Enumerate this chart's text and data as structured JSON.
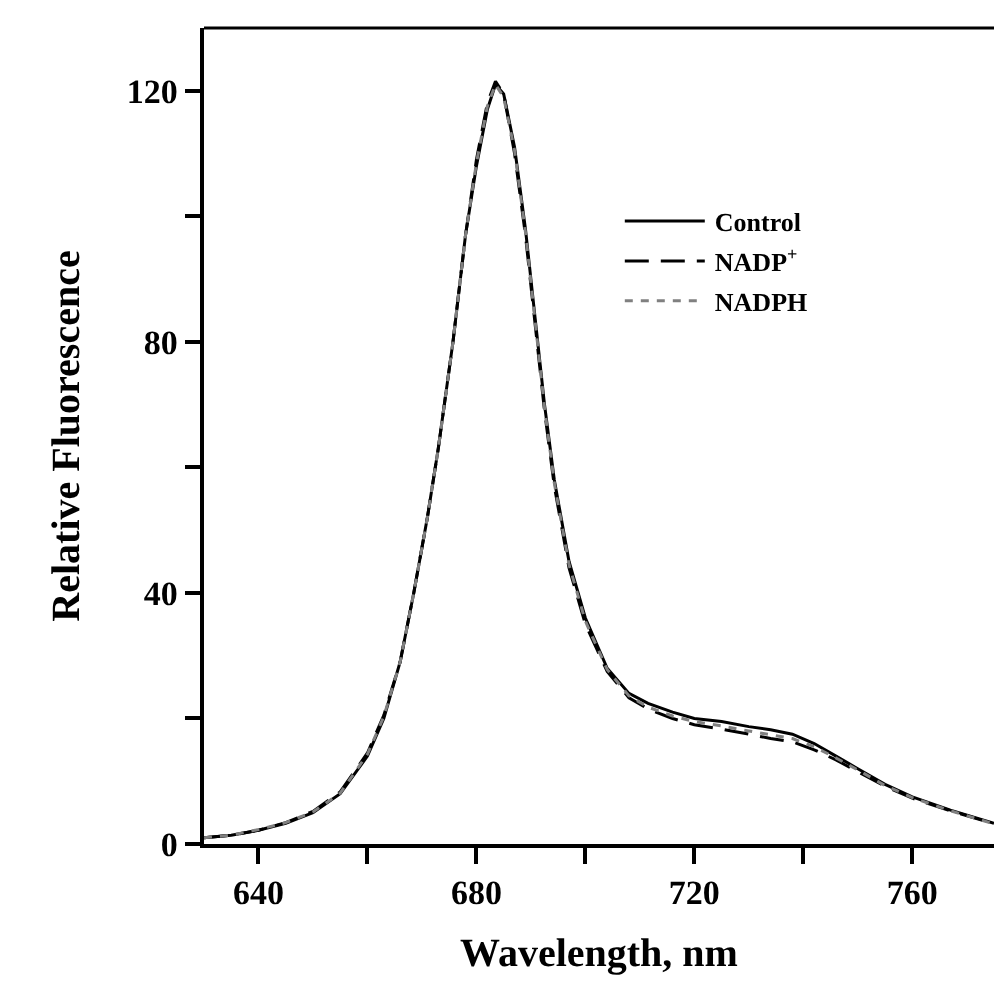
{
  "chart_data": {
    "type": "line",
    "xlabel": "Wavelength, nm",
    "ylabel": "Relative Fluorescence",
    "xlim": [
      630,
      775
    ],
    "ylim": [
      0,
      130
    ],
    "xticks": [
      640,
      {
        "value": 660,
        "label": null
      },
      680,
      {
        "value": 700,
        "label": null
      },
      720,
      {
        "value": 740,
        "label": null
      },
      760
    ],
    "yticks": [
      0,
      {
        "value": 20,
        "label": null
      },
      40,
      {
        "value": 60,
        "label": null
      },
      80,
      {
        "value": 100,
        "label": null
      },
      120
    ],
    "grid": false,
    "legend": "top right",
    "marker": "none",
    "x": [
      630,
      635,
      640,
      645,
      650,
      655,
      660,
      663,
      666,
      668.5,
      671,
      673,
      675.7,
      678,
      680,
      682,
      683.5,
      685,
      687,
      689,
      691,
      692.5,
      694.3,
      697,
      700,
      704,
      708,
      711.5,
      716,
      720,
      725,
      730,
      734,
      738,
      742,
      746,
      750,
      755,
      760,
      767,
      775
    ],
    "series": [
      {
        "name": "Control",
        "color": "#000000",
        "line_style": "solid",
        "values": [
          1,
          1.4,
          2.2,
          3.3,
          5,
          8,
          14,
          20,
          29,
          40,
          52,
          63,
          80,
          97,
          108,
          117,
          121,
          119.5,
          111,
          98,
          82,
          70,
          58,
          45,
          36,
          28,
          24,
          22.4,
          21,
          20,
          19.5,
          18.7,
          18.2,
          17.5,
          16,
          14,
          12,
          9.5,
          7.5,
          5.4,
          3.3
        ]
      },
      {
        "name": "NADP$^{+}$",
        "color": "#000000",
        "line_style": "dashed",
        "values": [
          1,
          1.4,
          2.2,
          3.4,
          5.2,
          8.3,
          14.5,
          20.5,
          29,
          40,
          52,
          63,
          80,
          97,
          109,
          118,
          121.5,
          119.5,
          110,
          97,
          81,
          69,
          57,
          44,
          35,
          27.5,
          23.3,
          21.5,
          20,
          19,
          18.3,
          17.5,
          16.8,
          16.3,
          15,
          13.4,
          11.5,
          9.2,
          7.3,
          5.3,
          3.2
        ]
      },
      {
        "name": "NADPH",
        "color": "#808080",
        "line_style": "dotted",
        "values": [
          1,
          1.4,
          2.3,
          3.4,
          5.1,
          8.1,
          14.3,
          20.3,
          29,
          40,
          52,
          63,
          80,
          97,
          108.5,
          117.5,
          121,
          119,
          110.5,
          97.5,
          81.5,
          69.5,
          57.5,
          44.5,
          35.5,
          27.8,
          23.6,
          21.8,
          20.4,
          19.5,
          18.8,
          18,
          17.4,
          16.8,
          15.5,
          13.7,
          11.8,
          9.3,
          7.4,
          5.3,
          3.2
        ]
      }
    ]
  }
}
